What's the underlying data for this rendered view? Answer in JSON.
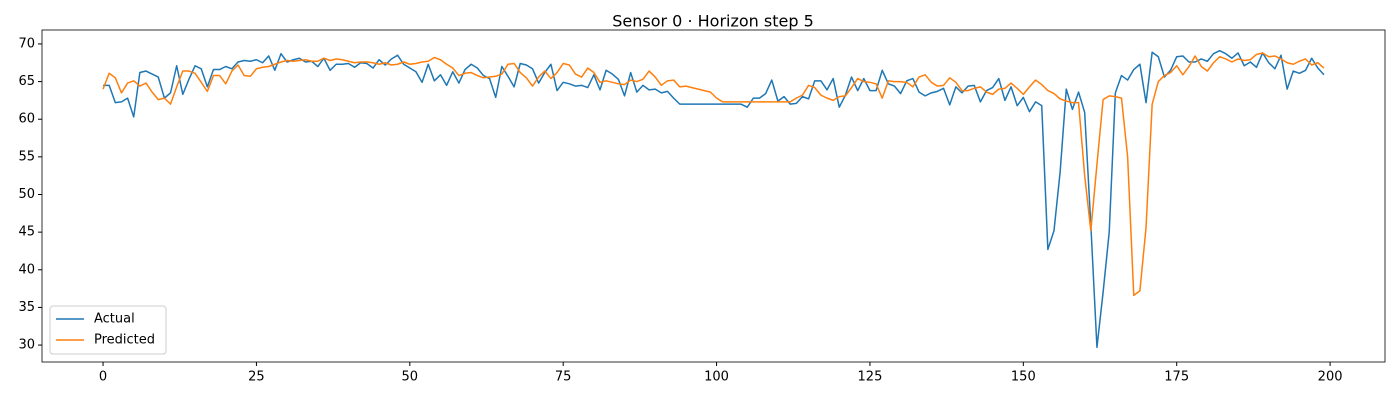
{
  "chart_data": {
    "type": "line",
    "title": "Sensor 0 · Horizon step 5",
    "x": [
      0,
      1,
      2,
      3,
      4,
      5,
      6,
      7,
      8,
      9,
      10,
      11,
      12,
      13,
      14,
      15,
      16,
      17,
      18,
      19,
      20,
      21,
      22,
      23,
      24,
      25,
      26,
      27,
      28,
      29,
      30,
      31,
      32,
      33,
      34,
      35,
      36,
      37,
      38,
      39,
      40,
      41,
      42,
      43,
      44,
      45,
      46,
      47,
      48,
      49,
      50,
      51,
      52,
      53,
      54,
      55,
      56,
      57,
      58,
      59,
      60,
      61,
      62,
      63,
      64,
      65,
      66,
      67,
      68,
      69,
      70,
      71,
      72,
      73,
      74,
      75,
      76,
      77,
      78,
      79,
      80,
      81,
      82,
      83,
      84,
      85,
      86,
      87,
      88,
      89,
      90,
      91,
      92,
      93,
      94,
      95,
      96,
      97,
      98,
      99,
      100,
      101,
      102,
      103,
      104,
      105,
      106,
      107,
      108,
      109,
      110,
      111,
      112,
      113,
      114,
      115,
      116,
      117,
      118,
      119,
      120,
      121,
      122,
      123,
      124,
      125,
      126,
      127,
      128,
      129,
      130,
      131,
      132,
      133,
      134,
      135,
      136,
      137,
      138,
      139,
      140,
      141,
      142,
      143,
      144,
      145,
      146,
      147,
      148,
      149,
      150,
      151,
      152,
      153,
      154,
      155,
      156,
      157,
      158,
      159,
      160,
      161,
      162,
      163,
      164,
      165,
      166,
      167,
      168,
      169,
      170,
      171,
      172,
      173,
      174,
      175,
      176,
      177,
      178,
      179,
      180,
      181,
      182,
      183,
      184,
      185,
      186,
      187,
      188,
      189,
      190,
      191,
      192,
      193,
      194,
      195,
      196,
      197,
      198,
      199
    ],
    "series": [
      {
        "name": "Actual",
        "color": "#1f77b4",
        "values": [
          64.5,
          64.5,
          62.2,
          62.3,
          62.8,
          60.3,
          66.2,
          66.4,
          66,
          65.6,
          62.8,
          63.5,
          67.1,
          63.3,
          65.3,
          67.1,
          66.7,
          64.3,
          66.6,
          66.6,
          67,
          66.7,
          67.6,
          67.8,
          67.7,
          67.9,
          67.5,
          68.4,
          66.5,
          68.7,
          67.6,
          67.9,
          68.1,
          67.6,
          67.7,
          67,
          68.1,
          66.5,
          67.3,
          67.3,
          67.4,
          66.9,
          67.5,
          67.4,
          66.8,
          67.9,
          67.2,
          68,
          68.5,
          67.3,
          66.8,
          66.3,
          64.9,
          67.3,
          65.1,
          65.9,
          64.5,
          66.3,
          64.8,
          66.6,
          67.3,
          66.8,
          65.8,
          65.4,
          62.9,
          67,
          65.7,
          64.3,
          67.4,
          67.2,
          66.7,
          64.8,
          66.2,
          67.3,
          63.8,
          64.9,
          64.7,
          64.4,
          64.5,
          64.2,
          65.9,
          63.9,
          66.5,
          66,
          65.3,
          63.1,
          66.2,
          63.6,
          64.5,
          63.9,
          64,
          63.5,
          63.7,
          62.8,
          62,
          62,
          62,
          62,
          62,
          62,
          62,
          62,
          62,
          62,
          62,
          61.6,
          62.8,
          62.8,
          63.4,
          65.2,
          62.4,
          63,
          62,
          62.1,
          63,
          62.7,
          65.1,
          65.1,
          63.9,
          65.4,
          61.6,
          63.2,
          65.6,
          63.8,
          65.4,
          63.8,
          63.8,
          66.5,
          64.7,
          64.4,
          63.4,
          65.1,
          65.4,
          63.6,
          63.1,
          63.5,
          63.7,
          64.1,
          61.9,
          64.3,
          63.5,
          64.4,
          64.5,
          62.3,
          63.8,
          64.2,
          65.4,
          62.5,
          64.3,
          61.8,
          62.9,
          61,
          62.3,
          61.8,
          42.7,
          45.2,
          53,
          64,
          61.3,
          63.6,
          60.9,
          46,
          29.7,
          37,
          45,
          63.5,
          65.8,
          65.2,
          66.6,
          67.3,
          62.2,
          68.9,
          68.3,
          65.6,
          66.5,
          68.3,
          68.4,
          67.6,
          67.6,
          68,
          67.7,
          68.7,
          69.1,
          68.7,
          68.1,
          68.8,
          67.1,
          67.6,
          66.9,
          68.8,
          67.5,
          66.7,
          68.5,
          64,
          66.4,
          66.1,
          66.5,
          68.1,
          66.8,
          65.9
        ]
      },
      {
        "name": "Predicted",
        "color": "#ff7f0e",
        "values": [
          64,
          66.1,
          65.5,
          63.5,
          64.8,
          65.1,
          64.4,
          64.8,
          63.6,
          62.6,
          62.8,
          62,
          64.3,
          66.4,
          66.4,
          66.1,
          64.9,
          63.7,
          65.8,
          65.8,
          64.7,
          66.4,
          67.2,
          65.8,
          65.7,
          66.7,
          66.9,
          67,
          67.3,
          67.6,
          67.8,
          67.7,
          67.8,
          67.9,
          67.7,
          67.7,
          68.1,
          67.8,
          68,
          67.9,
          67.7,
          67.5,
          67.6,
          67.6,
          67.5,
          67.3,
          67.5,
          67.2,
          67.3,
          67.6,
          67.3,
          67.4,
          67.6,
          67.7,
          68.2,
          67.9,
          67.3,
          66.8,
          65.8,
          66.1,
          66.2,
          65.8,
          65.5,
          65.6,
          65.7,
          66,
          67.3,
          67.4,
          66.2,
          65.5,
          64.4,
          65.6,
          66.4,
          65.4,
          66.2,
          67.4,
          67.2,
          66,
          65.6,
          66.8,
          66.2,
          64.9,
          65.1,
          64.9,
          64.7,
          64.6,
          65.2,
          65,
          65.3,
          66.4,
          65.6,
          64.5,
          65.1,
          65.2,
          64.3,
          64.4,
          64.2,
          64,
          63.8,
          63.6,
          62.8,
          62.3,
          62.3,
          62.3,
          62.3,
          62.3,
          62.3,
          62.3,
          62.3,
          62.3,
          62.3,
          62.3,
          62.3,
          62.8,
          63.2,
          64.5,
          64.2,
          63.2,
          62.8,
          62.5,
          63,
          63.1,
          64.2,
          65.4,
          65,
          64.9,
          64.7,
          62.8,
          65.1,
          65,
          65,
          64.9,
          64.3,
          65.6,
          65.9,
          64.9,
          64.4,
          64.5,
          65.5,
          64.9,
          63.8,
          63.8,
          64.1,
          64.3,
          63.6,
          63.3,
          64,
          64.1,
          64.8,
          64.1,
          63.3,
          64.3,
          65.2,
          64.6,
          63.8,
          63.4,
          62.7,
          62.4,
          62.2,
          62.2,
          52.5,
          45.2,
          54,
          62.6,
          63.1,
          63,
          62.8,
          55,
          36.6,
          37.2,
          45.6,
          62,
          65,
          65.8,
          66.2,
          67.1,
          65.9,
          67,
          68.4,
          67,
          66.4,
          67.5,
          68.3,
          68,
          67.6,
          68,
          67.8,
          67.9,
          68.6,
          68.8,
          68.3,
          68.4,
          68,
          67.5,
          67.3,
          67.7,
          68,
          67.2,
          67.5,
          66.8
        ]
      }
    ],
    "xlim": [
      -9.95,
      208.95
    ],
    "xticks": [
      0,
      25,
      50,
      75,
      100,
      125,
      150,
      175,
      200
    ],
    "ylim": [
      27.75,
      71.85
    ],
    "yticks": [
      30,
      35,
      40,
      45,
      50,
      55,
      60,
      65,
      70
    ],
    "grid": false,
    "legend": "lower left"
  }
}
